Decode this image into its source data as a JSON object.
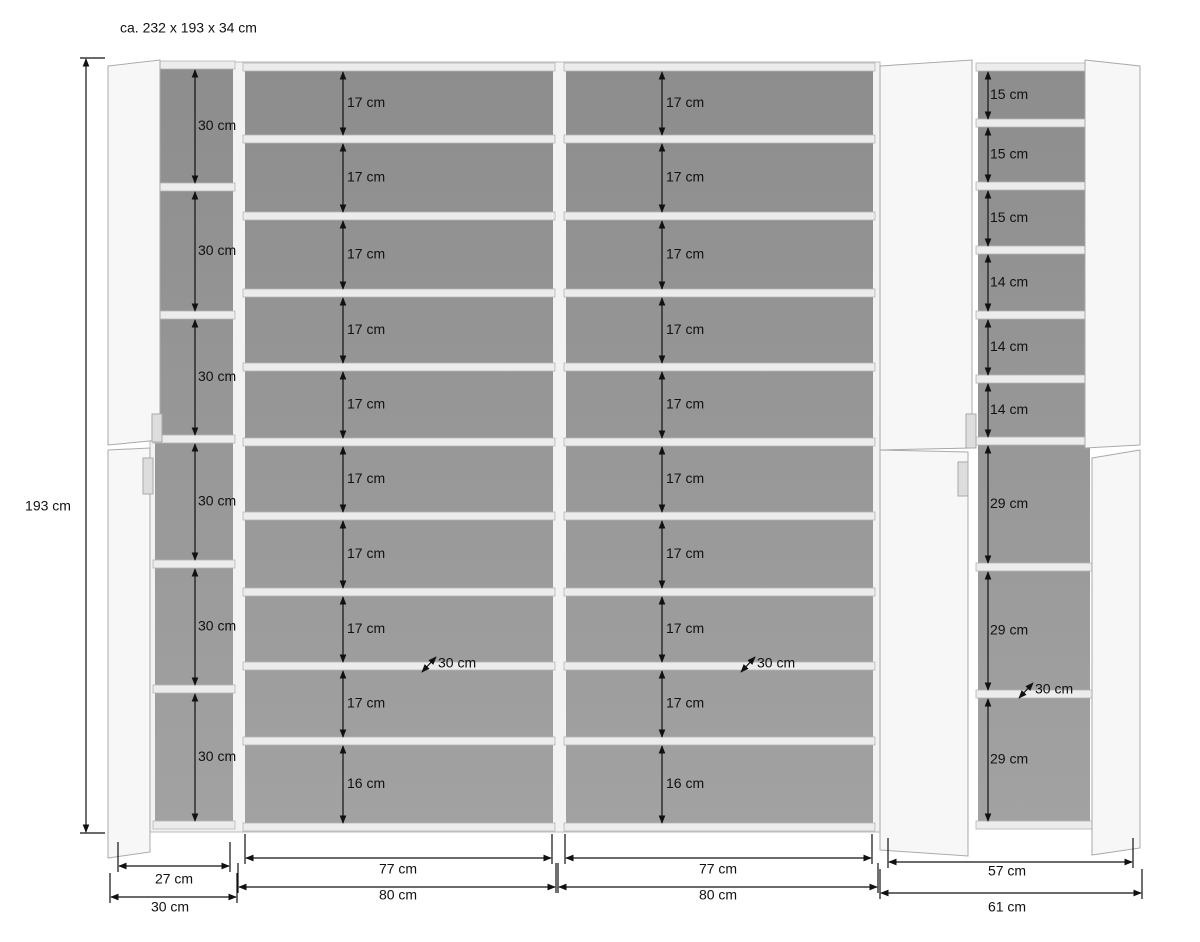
{
  "title": "ca. 232 x 193 x 34 cm",
  "height_label": "193 cm",
  "columns": [
    {
      "shelf_labels": [
        "30 cm",
        "30 cm",
        "30 cm",
        "30 cm",
        "30 cm",
        "30 cm"
      ],
      "inner_width": "27 cm",
      "outer_width": "30 cm"
    },
    {
      "shelf_labels": [
        "17 cm",
        "17 cm",
        "17 cm",
        "17 cm",
        "17 cm",
        "17 cm",
        "17 cm",
        "17 cm",
        "17 cm",
        "16 cm"
      ],
      "depth": "30 cm",
      "inner_width": "77 cm",
      "outer_width": "80 cm"
    },
    {
      "shelf_labels": [
        "17 cm",
        "17 cm",
        "17 cm",
        "17 cm",
        "17 cm",
        "17 cm",
        "17 cm",
        "17 cm",
        "17 cm",
        "16 cm"
      ],
      "depth": "30 cm",
      "inner_width": "77 cm",
      "outer_width": "80 cm"
    },
    {
      "shelf_labels": [
        "15 cm",
        "15 cm",
        "15 cm",
        "14 cm",
        "14 cm",
        "14 cm",
        "29 cm",
        "29 cm",
        "29 cm"
      ],
      "depth": "30 cm",
      "inner_width": "57 cm",
      "outer_width": "61 cm"
    }
  ]
}
